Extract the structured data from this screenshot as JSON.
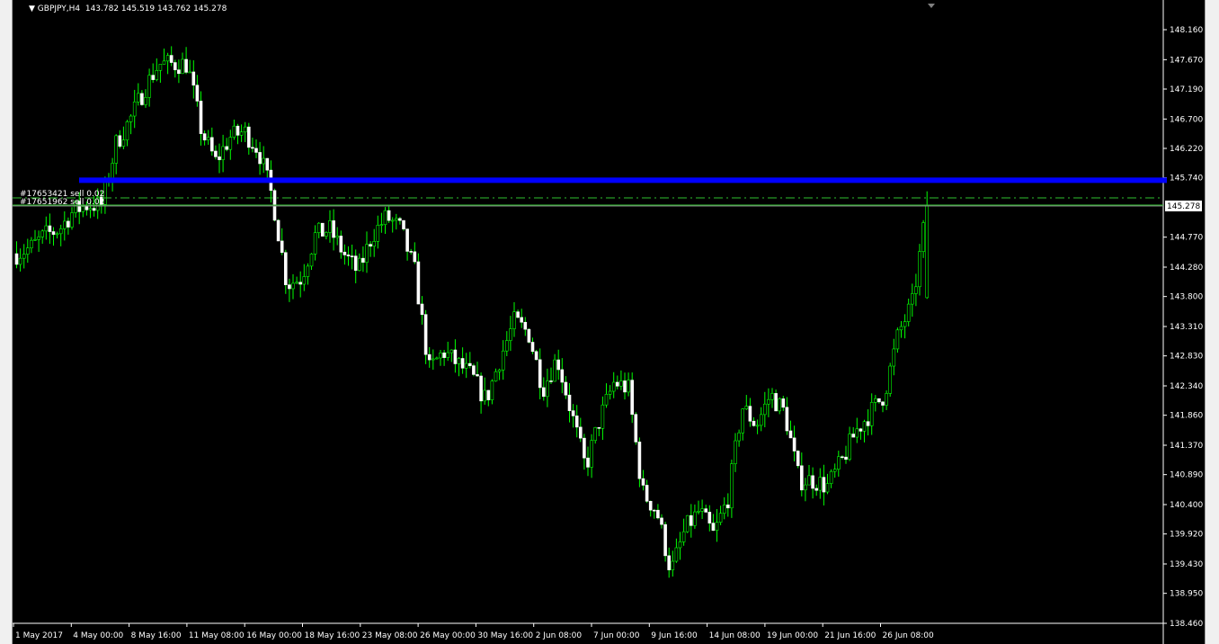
{
  "header": {
    "symbol": "GBPJPY,H4",
    "ohlc": "143.782 145.519 143.762 145.278",
    "collapse_icon": "triangle-down-icon"
  },
  "colors": {
    "background": "#000000",
    "bull_wick": "#00ff00",
    "bear_body": "#ffffff",
    "resistance_line": "#0000ff",
    "order_line": "#2fbf2f",
    "grid_text": "#ffffff"
  },
  "orders": [
    {
      "label": "#17653421 sell 0.02"
    },
    {
      "label": "#17651962 sell 0.02"
    }
  ],
  "current_price": "145.278",
  "chart_data": {
    "type": "candlestick",
    "title": "GBPJPY,H4",
    "ylim": [
      138.46,
      148.16
    ],
    "y_ticks": [
      "148.160",
      "147.670",
      "147.190",
      "146.700",
      "146.220",
      "145.740",
      "144.770",
      "144.280",
      "143.800",
      "143.310",
      "142.830",
      "142.340",
      "141.860",
      "141.370",
      "140.890",
      "140.400",
      "139.920",
      "139.430",
      "138.950",
      "138.460"
    ],
    "x_ticks": [
      "1 May 2017",
      "4 May 00:00",
      "8 May 16:00",
      "11 May 08:00",
      "16 May 00:00",
      "18 May 16:00",
      "23 May 08:00",
      "26 May 00:00",
      "30 May 16:00",
      "2 Jun 08:00",
      "7 Jun 00:00",
      "9 Jun 16:00",
      "14 Jun 08:00",
      "19 Jun 00:00",
      "21 Jun 16:00",
      "26 Jun 08:00"
    ],
    "approx_close_path": [
      144.5,
      144.6,
      144.8,
      144.9,
      145.2,
      145.3,
      145.3,
      146.3,
      146.7,
      147.2,
      147.6,
      147.6,
      147.6,
      146.5,
      146.0,
      146.4,
      146.5,
      146.2,
      145.4,
      144.0,
      144.1,
      144.8,
      144.9,
      144.5,
      144.2,
      144.8,
      145.1,
      144.9,
      144.2,
      142.6,
      142.9,
      142.7,
      142.5,
      142.1,
      142.8,
      143.4,
      143.2,
      142.3,
      142.8,
      141.9,
      141.0,
      141.8,
      142.4,
      142.3,
      140.6,
      140.3,
      139.3,
      140.0,
      140.3,
      139.9,
      140.5,
      142.0,
      141.7,
      142.2,
      141.9,
      140.8,
      140.8,
      140.7,
      141.1,
      141.6,
      141.9,
      142.2,
      143.2,
      143.7,
      145.278
    ],
    "horizontal_lines": [
      {
        "price": 145.7,
        "color": "#0000ff",
        "style": "thick"
      },
      {
        "price": 145.4,
        "style": "dash-dot"
      },
      {
        "price": 145.278,
        "style": "solid"
      }
    ]
  }
}
